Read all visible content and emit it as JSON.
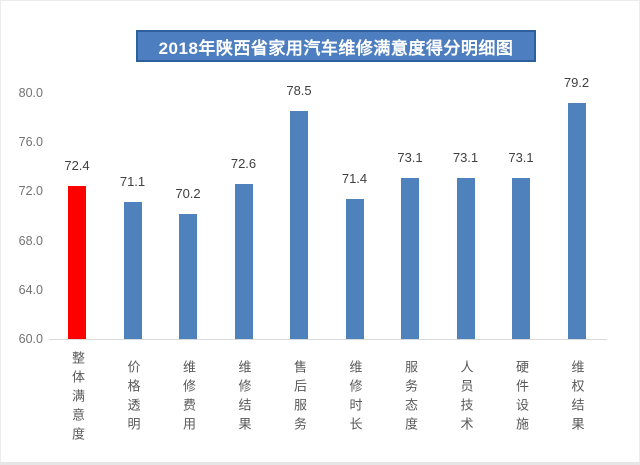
{
  "title_banner": "2018年陕西省家用汽车维修满意度得分明细图",
  "chart_data": {
    "type": "bar",
    "title": "2018年陕西省家用汽车维修满意度得分明细图",
    "categories": [
      "整体满意度",
      "价格透明",
      "维修费用",
      "维修结果",
      "售后服务",
      "维修时长",
      "服务态度",
      "人员技术",
      "硬件设施",
      "维权结果"
    ],
    "values": [
      72.4,
      71.1,
      70.2,
      72.6,
      78.5,
      71.4,
      73.1,
      73.1,
      73.1,
      79.2
    ],
    "value_labels": [
      "72.4",
      "71.1",
      "70.2",
      "72.6",
      "78.5",
      "71.4",
      "73.1",
      "73.1",
      "73.1",
      "79.2"
    ],
    "xlabel": "",
    "ylabel": "",
    "ylim": [
      60.0,
      80.0
    ],
    "ytick_step": 4.0,
    "ytick_labels_top_to_bottom": [
      "80.0",
      "76.0",
      "72.0",
      "68.0",
      "64.0",
      "60.0"
    ],
    "grid": false,
    "legend": false,
    "highlight_index": 0
  },
  "colors": {
    "bar_default": "#4f81bd",
    "bar_highlight": "#fe0000",
    "title_bg": "#4d7ebf",
    "title_border": "#2e5f9e",
    "title_text": "#ffffff",
    "value_label_text": "#404040",
    "ytick_text": "#737373",
    "category_text": "#595959",
    "baseline": "#d9d9d9"
  }
}
